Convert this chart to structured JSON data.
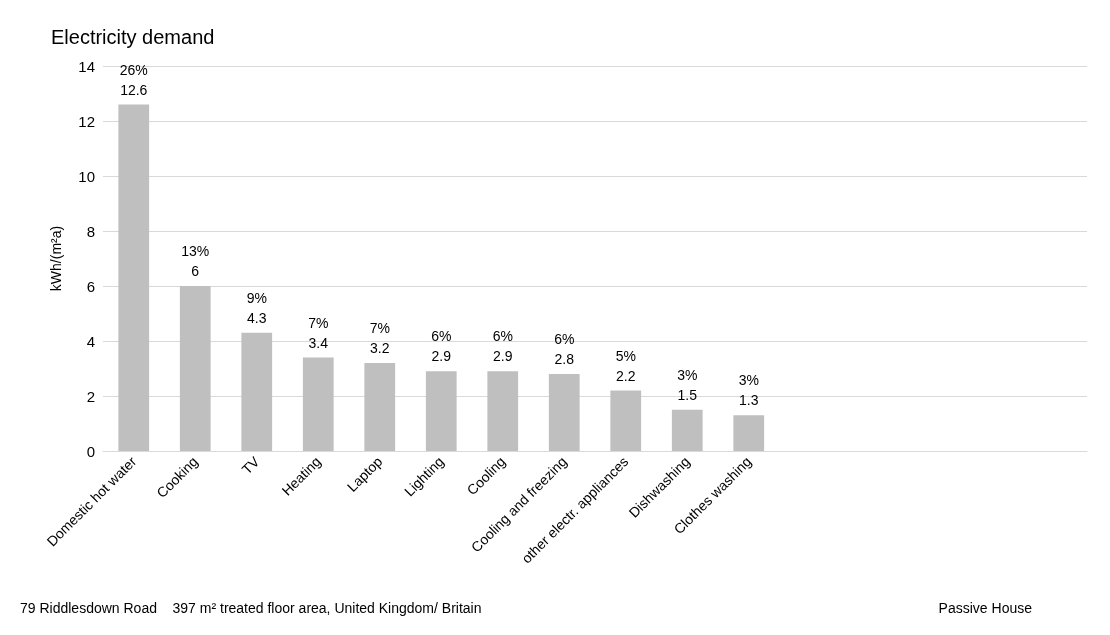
{
  "chart_data": {
    "type": "bar",
    "title": "Electricity demand",
    "ylabel": "kWh/(m²a)",
    "categories": [
      "Domestic hot water",
      "Cooking",
      "TV",
      "Heating",
      "Laptop",
      "Lighting",
      "Cooling",
      "Cooling and freezing",
      "other electr. appliances",
      "Dishwashing",
      "Clothes washing",
      null,
      null,
      null,
      null,
      null
    ],
    "values": [
      12.6,
      6,
      4.3,
      3.4,
      3.2,
      2.9,
      2.9,
      2.8,
      2.2,
      1.5,
      1.3,
      null,
      null,
      null,
      null,
      null
    ],
    "value_labels": [
      "26%\n12.6",
      "13%\n6",
      "9%\n4.3",
      "7%\n3.4",
      "7%\n3.2",
      "6%\n2.9",
      "6%\n2.9",
      "6%\n2.8",
      "5%\n2.2",
      "3%\n1.5",
      "3%\n1.3",
      null,
      null,
      null,
      null,
      null
    ],
    "color": "#bfbfbf",
    "ylim": [
      0,
      14
    ],
    "yticks": [
      0,
      2,
      4,
      6,
      8,
      10,
      12,
      14
    ],
    "grid": "y",
    "annotations": [
      "79 Riddlesdown Road    397 m² treated floor area, United Kingdom/ Britain",
      "Passive House"
    ]
  }
}
